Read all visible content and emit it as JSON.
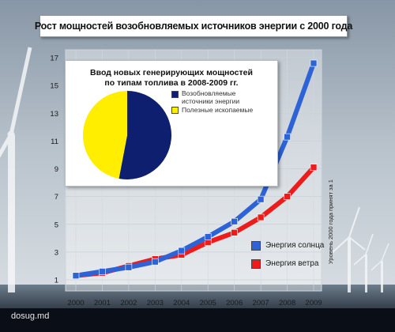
{
  "title": "Рост мощностей возобновляемых источников энергии с 2000 года",
  "side_note": "Уровень 2000 года принят за 1",
  "site": "dosug.md",
  "colors": {
    "solar": "#2d63d6",
    "wind": "#ee1b1b",
    "renewable": "#0d1f6e",
    "fossil": "#ffee00"
  },
  "chart_data": [
    {
      "type": "line",
      "categories": [
        "2000",
        "2001",
        "2002",
        "2003",
        "2004",
        "2005",
        "2006",
        "2007",
        "2008",
        "2009"
      ],
      "ylim": [
        1,
        17
      ],
      "yticks": [
        "1",
        "3",
        "5",
        "7",
        "9",
        "11",
        "13",
        "15",
        "17"
      ],
      "series": [
        {
          "name": "Энергия солнца",
          "values": [
            1.3,
            1.6,
            1.9,
            2.3,
            3.1,
            4.1,
            5.2,
            6.8,
            11.3,
            16.6
          ]
        },
        {
          "name": "Энергия ветра",
          "values": [
            1.3,
            1.5,
            2.0,
            2.5,
            2.8,
            3.7,
            4.4,
            5.5,
            7.0,
            9.1
          ]
        }
      ]
    },
    {
      "type": "pie",
      "title": "Ввод новых генерирующих мощностей\nпо типам топлива в 2008-2009 гг.",
      "labels": [
        "Возобновляемые\nисточники энергии",
        "Полезные ископаемые"
      ],
      "values": [
        53,
        47
      ]
    }
  ]
}
